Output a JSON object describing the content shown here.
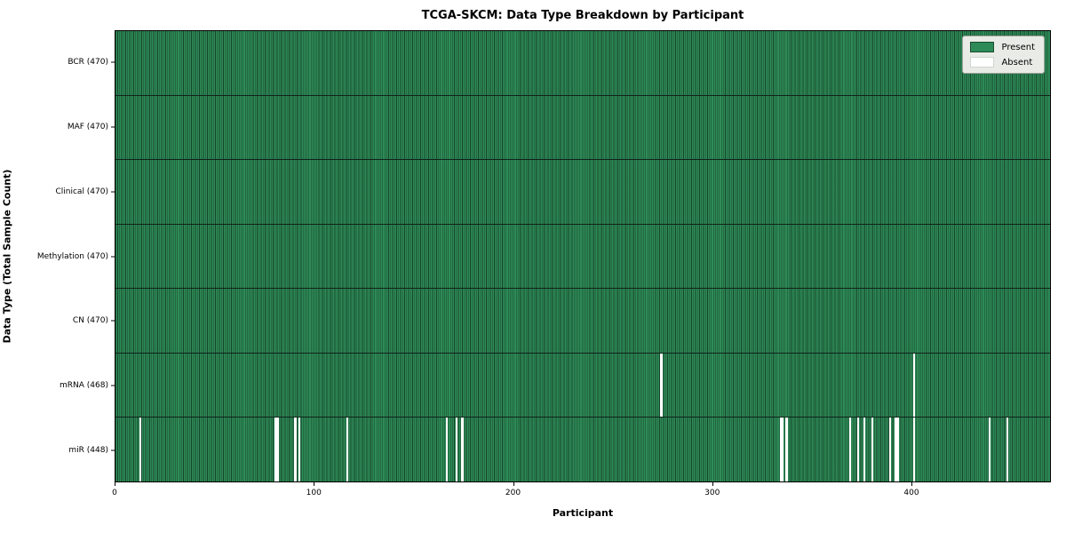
{
  "chart_data": {
    "type": "heatmap",
    "title": "TCGA-SKCM: Data Type Breakdown by Participant",
    "xlabel": "Participant",
    "ylabel": "Data Type (Total Sample Count)",
    "x_ticks": [
      0,
      100,
      200,
      300,
      400
    ],
    "n_participants": 470,
    "xlim": [
      0,
      470
    ],
    "grid": false,
    "legend_position": "upper right",
    "colors": {
      "present": "#2e8b57",
      "absent": "#ffffff",
      "cell_edge": "rgba(0,0,0,0.5)",
      "row_separator": "#10231a",
      "legend_face": "#e9ece6"
    },
    "legend": [
      {
        "label": "Present",
        "color": "#2e8b57"
      },
      {
        "label": "Absent",
        "color": "#ffffff"
      }
    ],
    "rows": [
      {
        "data_type": "BCR",
        "label": "BCR (470)",
        "present_count": 470,
        "absent_participants": []
      },
      {
        "data_type": "MAF",
        "label": "MAF (470)",
        "present_count": 470,
        "absent_participants": []
      },
      {
        "data_type": "Clinical",
        "label": "Clinical (470)",
        "present_count": 470,
        "absent_participants": []
      },
      {
        "data_type": "Methylation",
        "label": "Methylation (470)",
        "present_count": 470,
        "absent_participants": []
      },
      {
        "data_type": "CN",
        "label": "CN (470)",
        "present_count": 470,
        "absent_participants": []
      },
      {
        "data_type": "mRNA",
        "label": "mRNA (468)",
        "present_count": 468,
        "absent_participants": [
          274,
          401
        ]
      },
      {
        "data_type": "miR",
        "label": "miR (448)",
        "present_count": 448,
        "absent_participants": [
          12,
          80,
          81,
          90,
          92,
          116,
          166,
          171,
          174,
          334,
          335,
          337,
          369,
          373,
          376,
          380,
          389,
          392,
          393,
          401,
          439,
          448
        ]
      }
    ]
  }
}
